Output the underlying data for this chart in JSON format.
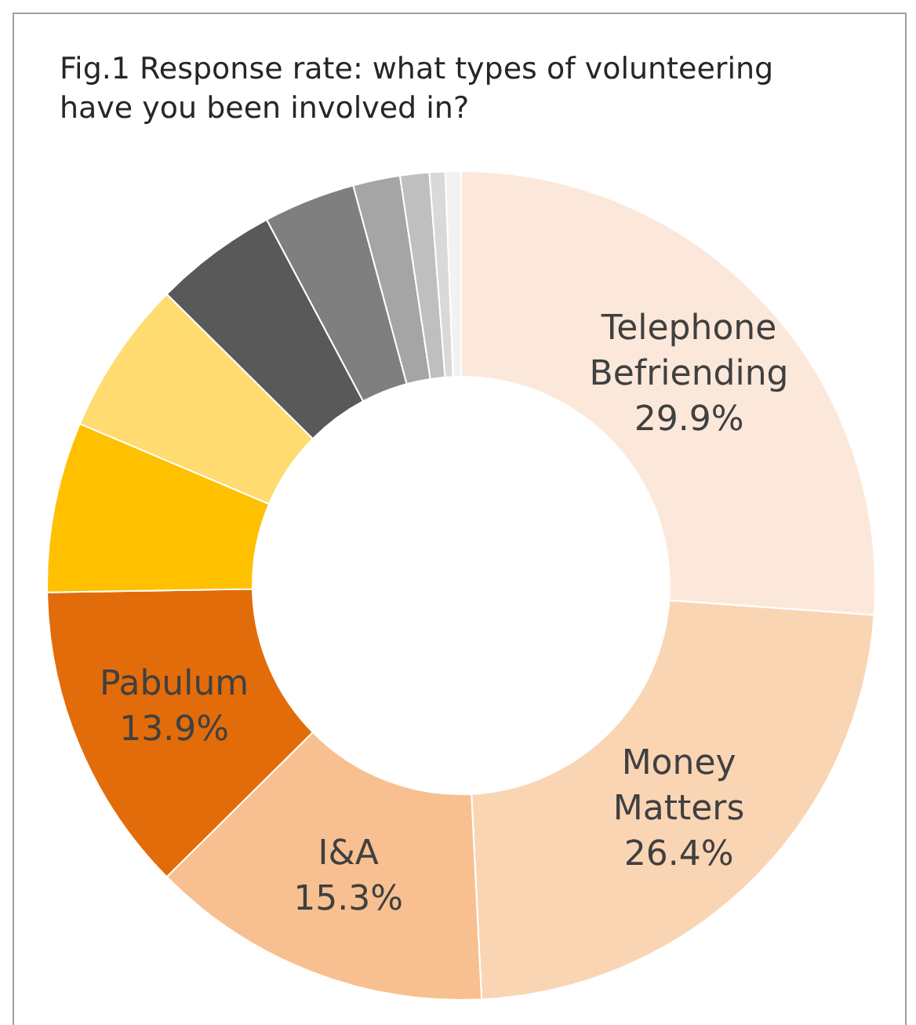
{
  "chart_data": {
    "type": "donut",
    "title": "Fig.1 Response rate: what types of volunteering have you been involved in?",
    "categories": [
      "Telephone Befriending",
      "Money Matters",
      "I&A",
      "Pabulum",
      null,
      null,
      null,
      null,
      null,
      null,
      null,
      null
    ],
    "values": [
      29.9,
      26.4,
      15.3,
      13.9,
      7.6,
      6.9,
      5.5,
      4.1,
      2.1,
      1.3,
      0.7,
      0.7
    ],
    "value_labels": [
      "29.9%",
      "26.4%",
      "15.3%",
      "13.9%",
      null,
      null,
      null,
      null,
      null,
      null,
      null,
      null
    ],
    "colors": [
      "#fce8da",
      "#fad5b4",
      "#f8c090",
      "#e36c0a",
      "#ffc000",
      "#ffdb70",
      "#595959",
      "#7f7f7f",
      "#a5a5a5",
      "#bfbfbf",
      "#d9d9d9",
      "#f2f2f2"
    ]
  }
}
